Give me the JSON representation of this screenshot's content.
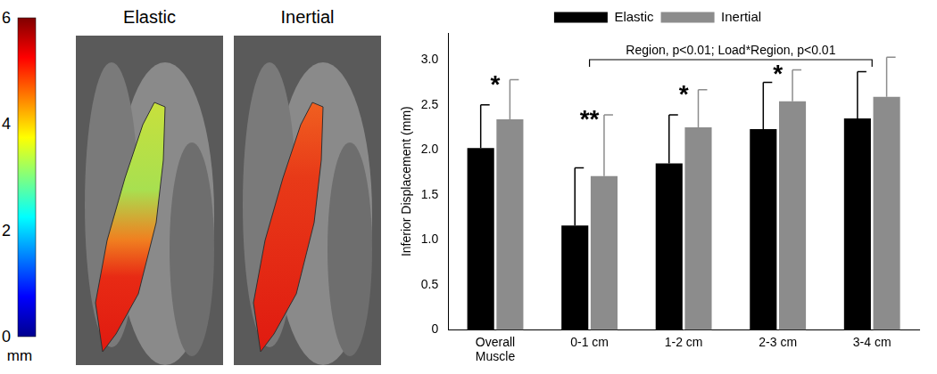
{
  "images": {
    "colorbar": {
      "range": [
        0,
        6
      ],
      "ticks": [
        0,
        2,
        4,
        6
      ],
      "label": "mm"
    },
    "panels": [
      {
        "title": "Elastic"
      },
      {
        "title": "Inertial"
      }
    ]
  },
  "chart_data": {
    "type": "bar",
    "categories": [
      [
        "Overall",
        "Muscle"
      ],
      "0-1 cm",
      "1-2 cm",
      "2-3 cm",
      "3-4 cm"
    ],
    "series": [
      {
        "name": "Elastic",
        "color": "#000000",
        "values": [
          2.02,
          1.16,
          1.85,
          2.23,
          2.35
        ],
        "errors": [
          0.48,
          0.64,
          0.54,
          0.52,
          0.52
        ]
      },
      {
        "name": "Inertial",
        "color": "#8c8c8c",
        "values": [
          2.34,
          1.71,
          2.25,
          2.54,
          2.59
        ],
        "errors": [
          0.44,
          0.68,
          0.42,
          0.35,
          0.44
        ]
      }
    ],
    "y_label": "Inferior Displacement (mm)",
    "ylim": [
      0,
      3.3
    ],
    "yticks": [
      0,
      0.5,
      {
        "value": 1,
        "label": "1.0"
      },
      1.5,
      {
        "value": 2,
        "label": "2.0"
      },
      2.5,
      {
        "value": 3,
        "label": "3.0"
      }
    ],
    "significance": [
      "*",
      "**",
      "*",
      "*",
      null
    ],
    "annotation": {
      "text": "Region, p<0.01; Load*Region, p<0.01",
      "from": "0-1 cm",
      "to": "3-4 cm"
    },
    "legend": "top",
    "grid": false
  }
}
